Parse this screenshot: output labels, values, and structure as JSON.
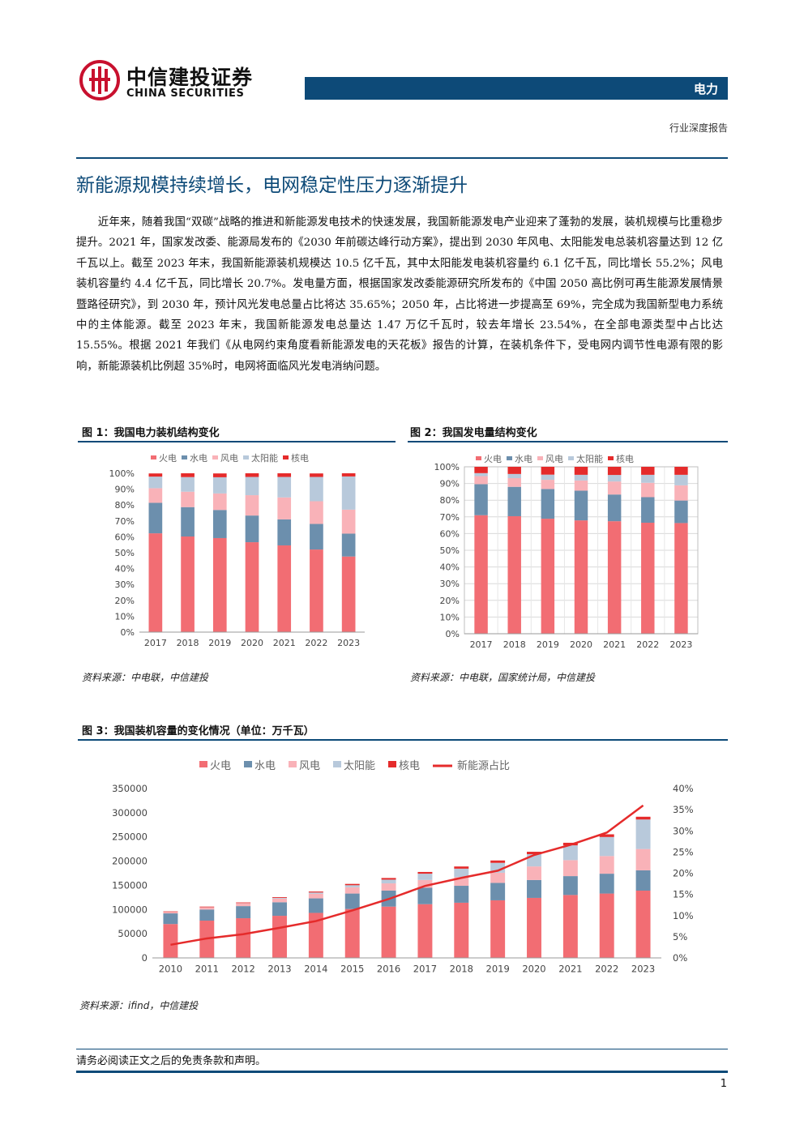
{
  "header": {
    "logo_cn": "中信建投证券",
    "logo_en": "CHINA SECURITIES",
    "sector": "电力",
    "report_type": "行业深度报告"
  },
  "section_title": "新能源规模持续增长，电网稳定性压力逐渐提升",
  "paragraph": "近年来，随着我国“双碳”战略的推进和新能源发电技术的快速发展，我国新能源发电产业迎来了蓬勃的发展，装机规模与比重稳步提升。2021 年，国家发改委、能源局发布的《2030 年前碳达峰行动方案》，提出到 2030 年风电、太阳能发电总装机容量达到 12 亿千瓦以上。截至 2023 年末，我国新能源装机规模达 10.5 亿千瓦，其中太阳能发电装机容量约 6.1 亿千瓦，同比增长 55.2%；风电装机容量约 4.4 亿千瓦，同比增长 20.7%。发电量方面，根据国家发改委能源研究所发布的《中国 2050 高比例可再生能源发展情景暨路径研究》，到 2030 年，预计风光发电总量占比将达 35.65%；2050 年，占比将进一步提高至 69%，完全成为我国新型电力系统中的主体能源。截至 2023 年末，我国新能源发电总量达 1.47 万亿千瓦时，较去年增长 23.54%，在全部电源类型中占比达 15.55%。根据 2021 年我们《从电网约束角度看新能源发电的天花板》报告的计算，在装机条件下，受电网内调节性电源有限的影响，新能源装机比例超 35%时，电网将面临风光发电消纳问题。",
  "colors": {
    "thermal": "#f26d73",
    "hydro": "#6c8fad",
    "wind": "#f9b2b8",
    "solar": "#b8c9db",
    "nuclear": "#e52b2b",
    "ratio_line": "#e52b2b",
    "brand": "#0d4a78"
  },
  "figures": [
    {
      "title": "图 1：我国电力装机结构变化",
      "source": "资料来源：中电联，中信建投"
    },
    {
      "title": "图 2：我国发电量结构变化",
      "source": "资料来源：中电联，国家统计局，中信建投"
    },
    {
      "title": "图 3：我国装机容量的变化情况（单位：万千瓦）",
      "source": "资料来源：ifind，中信建投"
    }
  ],
  "chart_data": [
    {
      "type": "bar",
      "stacked": true,
      "percent": true,
      "categories": [
        "2017",
        "2018",
        "2019",
        "2020",
        "2021",
        "2022",
        "2023"
      ],
      "series": [
        {
          "name": "火电",
          "values": [
            62.2,
            60.2,
            59.2,
            56.6,
            54.6,
            52.0,
            47.6
          ]
        },
        {
          "name": "水电",
          "values": [
            19.2,
            18.5,
            17.7,
            16.8,
            16.4,
            16.1,
            14.4
          ]
        },
        {
          "name": "风电",
          "values": [
            9.2,
            9.7,
            10.4,
            12.8,
            13.8,
            14.3,
            15.1
          ]
        },
        {
          "name": "太阳能",
          "values": [
            7.3,
            9.2,
            10.2,
            11.5,
            12.9,
            15.3,
            20.9
          ]
        },
        {
          "name": "核电",
          "values": [
            2.0,
            2.4,
            2.4,
            2.3,
            2.3,
            2.2,
            2.0
          ]
        }
      ],
      "ylim": [
        0,
        100
      ],
      "yticks": [
        "0%",
        "10%",
        "20%",
        "30%",
        "40%",
        "50%",
        "60%",
        "70%",
        "80%",
        "90%",
        "100%"
      ],
      "legend": "top",
      "grid": true
    },
    {
      "type": "bar",
      "stacked": true,
      "percent": true,
      "categories": [
        "2017",
        "2018",
        "2019",
        "2020",
        "2021",
        "2022",
        "2023"
      ],
      "series": [
        {
          "name": "火电",
          "values": [
            71.0,
            70.4,
            68.9,
            67.9,
            67.4,
            66.5,
            66.3
          ]
        },
        {
          "name": "水电",
          "values": [
            18.6,
            17.6,
            17.8,
            17.8,
            16.0,
            15.3,
            13.5
          ]
        },
        {
          "name": "风电",
          "values": [
            4.8,
            5.2,
            5.5,
            6.1,
            7.8,
            8.6,
            9.1
          ]
        },
        {
          "name": "太阳能",
          "values": [
            1.8,
            2.5,
            3.1,
            3.4,
            3.9,
            4.8,
            6.3
          ]
        },
        {
          "name": "核电",
          "values": [
            3.8,
            4.3,
            4.7,
            4.8,
            4.9,
            4.8,
            4.8
          ]
        }
      ],
      "ylim": [
        0,
        100
      ],
      "yticks": [
        "0%",
        "10%",
        "20%",
        "30%",
        "40%",
        "50%",
        "60%",
        "70%",
        "80%",
        "90%",
        "100%"
      ],
      "legend": "top",
      "grid": true
    },
    {
      "type": "bar",
      "stacked": true,
      "categories": [
        "2010",
        "2011",
        "2012",
        "2013",
        "2014",
        "2015",
        "2016",
        "2017",
        "2018",
        "2019",
        "2020",
        "2021",
        "2022",
        "2023"
      ],
      "series": [
        {
          "name": "火电",
          "values": [
            70000,
            77000,
            82000,
            87000,
            93000,
            101000,
            106000,
            111000,
            114000,
            119000,
            124000,
            130000,
            133000,
            139000
          ]
        },
        {
          "name": "水电",
          "values": [
            22000,
            23000,
            25000,
            28000,
            30000,
            32000,
            33000,
            34000,
            35000,
            36000,
            37000,
            39000,
            41000,
            42000
          ]
        },
        {
          "name": "风电",
          "values": [
            3000,
            4500,
            6000,
            7500,
            9600,
            13000,
            15000,
            16000,
            18000,
            21000,
            28000,
            33000,
            36500,
            44000
          ]
        },
        {
          "name": "太阳能",
          "values": [
            0,
            200,
            300,
            1500,
            2500,
            4200,
            7700,
            13000,
            17400,
            20400,
            25300,
            30600,
            39300,
            61000
          ]
        },
        {
          "name": "核电",
          "values": [
            1100,
            1300,
            1300,
            1500,
            2000,
            2700,
            3400,
            3600,
            4500,
            4900,
            5000,
            5300,
            5600,
            5700
          ]
        },
        {
          "name": "新能源占比",
          "axis": "right",
          "type": "line",
          "values": [
            3.1,
            4.6,
            5.6,
            7.1,
            8.7,
            11.2,
            13.9,
            17.0,
            18.9,
            20.6,
            24.3,
            26.7,
            29.6,
            36.0
          ]
        }
      ],
      "ylim": [
        0,
        350000
      ],
      "yticks": [
        "0",
        "50000",
        "100000",
        "150000",
        "200000",
        "250000",
        "300000",
        "350000"
      ],
      "y2lim": [
        0,
        40
      ],
      "y2ticks": [
        "0%",
        "5%",
        "10%",
        "15%",
        "20%",
        "25%",
        "30%",
        "35%",
        "40%"
      ],
      "legend": "top",
      "grid": true
    }
  ],
  "footer": {
    "disclaimer": "请务必阅读正文之后的免责条款和声明。",
    "page": "1"
  }
}
